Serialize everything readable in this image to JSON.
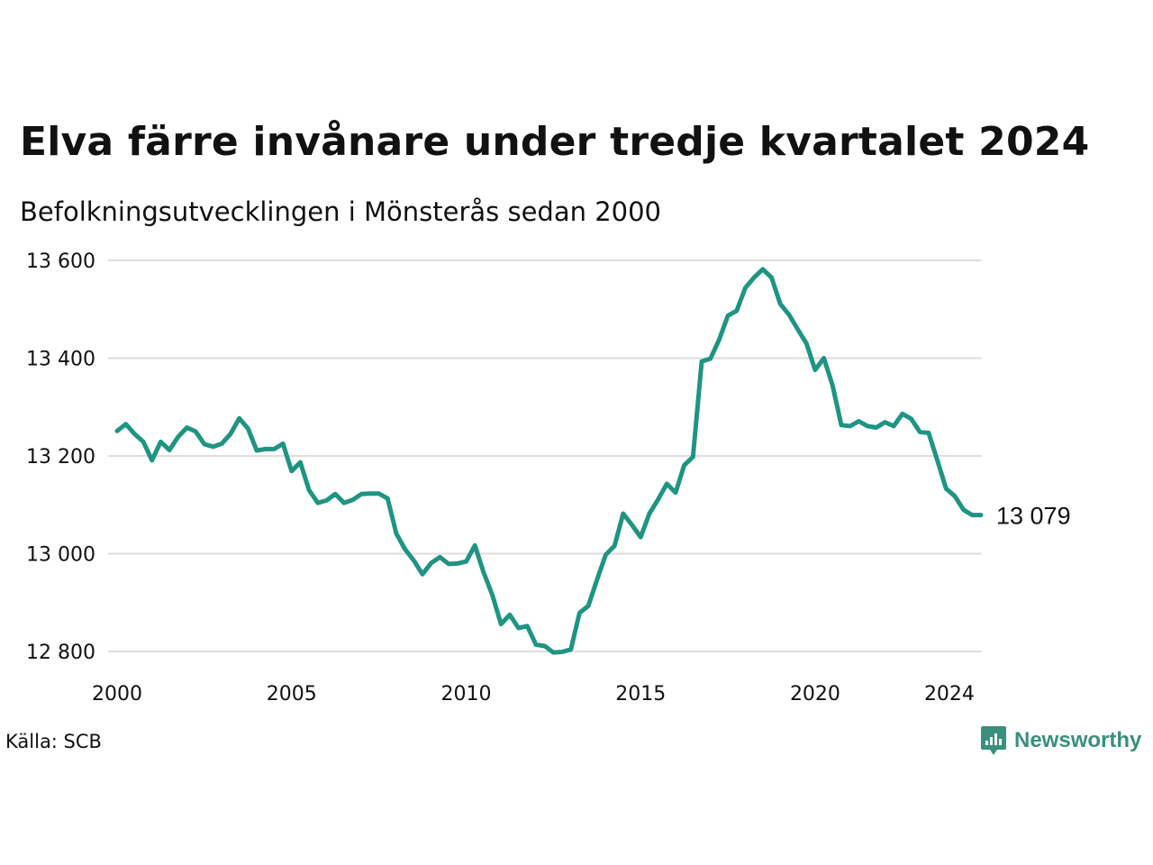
{
  "title": "Elva färre invånare under tredje kvartalet 2024",
  "subtitle": "Befolkningsutvecklingen i Mönsterås sedan 2000",
  "source": "Källa: SCB",
  "logo": {
    "text": "Newsworthy",
    "icon": "newsworthy-logo-icon"
  },
  "colors": {
    "line": "#1f9483",
    "grid": "#dddddd",
    "logo": "#3a8f7e"
  },
  "chart_data": {
    "type": "line",
    "title": "Elva färre invånare under tredje kvartalet 2024",
    "subtitle": "Befolkningsutvecklingen i Mönsterås sedan 2000",
    "xlim": [
      2000,
      2024.75
    ],
    "ylim": [
      12800,
      13600
    ],
    "x_ticks": [
      {
        "value": 2000,
        "label": "2000"
      },
      {
        "value": 2005,
        "label": "2005"
      },
      {
        "value": 2010,
        "label": "2010"
      },
      {
        "value": 2015,
        "label": "2015"
      },
      {
        "value": 2020,
        "label": "2020"
      },
      {
        "value": 2024,
        "label": "2024"
      }
    ],
    "y_ticks": [
      {
        "value": 13600,
        "label": "13 600"
      },
      {
        "value": 13400,
        "label": "13 400"
      },
      {
        "value": 13200,
        "label": "13 200"
      },
      {
        "value": 13000,
        "label": "13 000"
      },
      {
        "value": 12800,
        "label": "12 800"
      }
    ],
    "grid": true,
    "end_label": "13 079",
    "series": [
      {
        "x": [
          2000.0,
          2000.25,
          2000.5,
          2000.75,
          2001.0,
          2001.25,
          2001.5,
          2001.75,
          2002.0,
          2002.25,
          2002.5,
          2002.75,
          2003.0,
          2003.25,
          2003.5,
          2003.75,
          2004.0,
          2004.25,
          2004.5,
          2004.75,
          2005.0,
          2005.25,
          2005.5,
          2005.75,
          2006.0,
          2006.25,
          2006.5,
          2006.75,
          2007.0,
          2007.25,
          2007.5,
          2007.75,
          2008.0,
          2008.25,
          2008.5,
          2008.75,
          2009.0,
          2009.25,
          2009.5,
          2009.75,
          2010.0,
          2010.25,
          2010.5,
          2010.75,
          2011.0,
          2011.25,
          2011.5,
          2011.75,
          2012.0,
          2012.25,
          2012.5,
          2012.75,
          2013.0,
          2013.25,
          2013.5,
          2013.75,
          2014.0,
          2014.25,
          2014.5,
          2014.75,
          2015.0,
          2015.25,
          2015.5,
          2015.75,
          2016.0,
          2016.25,
          2016.5,
          2016.75,
          2017.0,
          2017.25,
          2017.5,
          2017.75,
          2018.0,
          2018.25,
          2018.5,
          2018.75,
          2019.0,
          2019.25,
          2019.5,
          2019.75,
          2020.0,
          2020.25,
          2020.5,
          2020.75,
          2021.0,
          2021.25,
          2021.5,
          2021.75,
          2022.0,
          2022.25,
          2022.5,
          2022.75,
          2023.0,
          2023.25,
          2023.5,
          2023.75,
          2024.0,
          2024.25,
          2024.5,
          2024.75
        ],
        "values": [
          13251,
          13265,
          13245,
          13229,
          13191,
          13229,
          13212,
          13239,
          13258,
          13250,
          13224,
          13219,
          13225,
          13245,
          13277,
          13256,
          13211,
          13214,
          13214,
          13225,
          13169,
          13187,
          13130,
          13104,
          13109,
          13122,
          13104,
          13110,
          13122,
          13123,
          13123,
          13113,
          13041,
          13009,
          12986,
          12958,
          12981,
          12993,
          12979,
          12980,
          12984,
          13017,
          12962,
          12916,
          12856,
          12875,
          12848,
          12852,
          12814,
          12811,
          12798,
          12799,
          12804,
          12879,
          12893,
          12947,
          12998,
          13016,
          13082,
          13059,
          13034,
          13082,
          13111,
          13143,
          13125,
          13181,
          13198,
          13393,
          13399,
          13438,
          13487,
          13497,
          13544,
          13565,
          13582,
          13565,
          13511,
          13489,
          13459,
          13430,
          13376,
          13400,
          13344,
          13263,
          13261,
          13271,
          13261,
          13258,
          13269,
          13261,
          13286,
          13276,
          13249,
          13247,
          13191,
          13133,
          13118,
          13090,
          13079,
          13079
        ]
      }
    ]
  }
}
